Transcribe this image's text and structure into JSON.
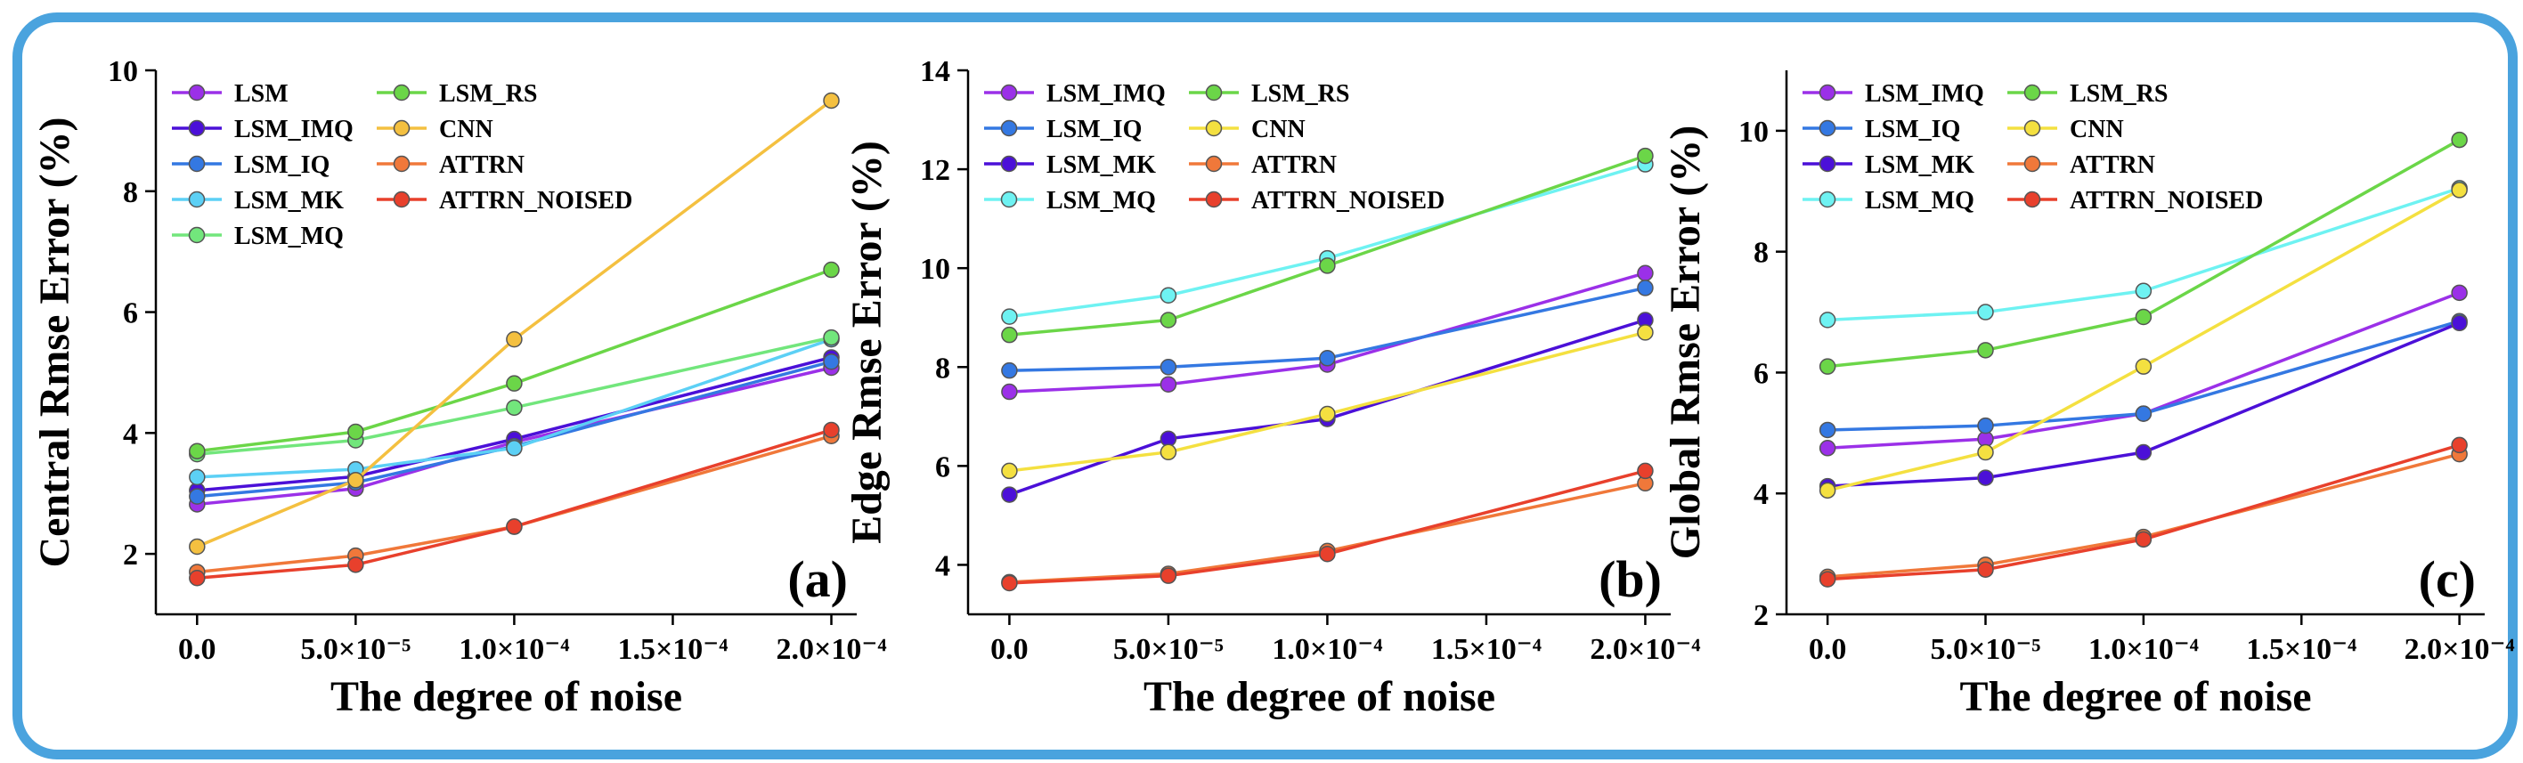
{
  "chart_data": [
    {
      "type": "line",
      "panel_label": "(a)",
      "xlabel": "The degree of noise",
      "ylabel": "Central Rmse Error (%)",
      "x": [
        0,
        5e-05,
        0.0001,
        0.0002
      ],
      "x_range": [
        -1.3e-05,
        0.000208
      ],
      "x_ticks": [
        0,
        5e-05,
        0.0001,
        0.00015,
        0.0002
      ],
      "x_tick_labels": [
        "0.0",
        "5.0×10⁻⁵",
        "1.0×10⁻⁴",
        "1.5×10⁻⁴",
        "2.0×10⁻⁴"
      ],
      "ylim": [
        1,
        10
      ],
      "y_ticks": [
        2,
        4,
        6,
        8,
        10
      ],
      "legend_placement": "top-left",
      "legend_columns": 2,
      "legend_column_split": 5,
      "series": [
        {
          "name": "LSM",
          "color": "#9b30e8",
          "values": [
            2.82,
            3.08,
            3.85,
            5.08
          ]
        },
        {
          "name": "LSM_IMQ",
          "color": "#4b10d8",
          "values": [
            3.05,
            3.28,
            3.9,
            5.25
          ]
        },
        {
          "name": "LSM_IQ",
          "color": "#3478e2",
          "values": [
            2.95,
            3.18,
            3.78,
            5.18
          ]
        },
        {
          "name": "LSM_MK",
          "color": "#5cd0f5",
          "values": [
            3.27,
            3.4,
            3.75,
            5.55
          ]
        },
        {
          "name": "LSM_MQ",
          "color": "#72e67c",
          "values": [
            3.65,
            3.88,
            4.42,
            5.58
          ]
        },
        {
          "name": "LSM_RS",
          "color": "#6bd648",
          "values": [
            3.7,
            4.02,
            4.82,
            6.7
          ]
        },
        {
          "name": "CNN",
          "color": "#f4c040",
          "values": [
            2.12,
            3.22,
            5.55,
            9.5
          ]
        },
        {
          "name": "ATTRN",
          "color": "#f0783a",
          "values": [
            1.7,
            1.97,
            2.45,
            3.95
          ]
        },
        {
          "name": "ATTRN_NOISED",
          "color": "#e8402c",
          "values": [
            1.6,
            1.82,
            2.45,
            4.05
          ]
        }
      ]
    },
    {
      "type": "line",
      "panel_label": "(b)",
      "xlabel": "The degree of noise",
      "ylabel": "Edge Rmse Error (%)",
      "x": [
        0,
        5e-05,
        0.0001,
        0.0002
      ],
      "x_range": [
        -1.3e-05,
        0.000208
      ],
      "x_ticks": [
        0,
        5e-05,
        0.0001,
        0.00015,
        0.0002
      ],
      "x_tick_labels": [
        "0.0",
        "5.0×10⁻⁵",
        "1.0×10⁻⁴",
        "1.5×10⁻⁴",
        "2.0×10⁻⁴"
      ],
      "ylim": [
        3,
        14
      ],
      "y_ticks": [
        4,
        6,
        8,
        10,
        12,
        14
      ],
      "legend_placement": "top-left",
      "legend_columns": 2,
      "legend_column_split": 4,
      "series": [
        {
          "name": "LSM_IMQ",
          "color": "#9b30e8",
          "values": [
            7.5,
            7.65,
            8.05,
            9.9
          ]
        },
        {
          "name": "LSM_IQ",
          "color": "#3478e2",
          "values": [
            7.93,
            8.0,
            8.18,
            9.6
          ]
        },
        {
          "name": "LSM_MK",
          "color": "#4b10d8",
          "values": [
            5.42,
            6.55,
            6.95,
            8.95
          ]
        },
        {
          "name": "LSM_MQ",
          "color": "#6ef2f2",
          "values": [
            9.02,
            9.45,
            10.2,
            12.1
          ]
        },
        {
          "name": "LSM_RS",
          "color": "#6bd648",
          "values": [
            8.65,
            8.95,
            10.05,
            12.27
          ]
        },
        {
          "name": "CNN",
          "color": "#f4e040",
          "values": [
            5.9,
            6.28,
            7.05,
            8.7
          ]
        },
        {
          "name": "ATTRN",
          "color": "#f0783a",
          "values": [
            3.65,
            3.82,
            4.28,
            5.65
          ]
        },
        {
          "name": "ATTRN_NOISED",
          "color": "#e8402c",
          "values": [
            3.63,
            3.78,
            4.22,
            5.9
          ]
        }
      ]
    },
    {
      "type": "line",
      "panel_label": "(c)",
      "xlabel": "The degree of noise",
      "ylabel": "Global Rmse Error (%)",
      "x": [
        0,
        5e-05,
        0.0001,
        0.0002
      ],
      "x_range": [
        -1.3e-05,
        0.000208
      ],
      "x_ticks": [
        0,
        5e-05,
        0.0001,
        0.00015,
        0.0002
      ],
      "x_tick_labels": [
        "0.0",
        "5.0×10⁻⁵",
        "1.0×10⁻⁴",
        "1.5×10⁻⁴",
        "2.0×10⁻⁴"
      ],
      "ylim": [
        2,
        11
      ],
      "y_ticks": [
        2,
        4,
        6,
        8,
        10
      ],
      "legend_placement": "top-left",
      "legend_columns": 2,
      "legend_column_split": 4,
      "series": [
        {
          "name": "LSM_IMQ",
          "color": "#9b30e8",
          "values": [
            4.75,
            4.9,
            5.32,
            7.32
          ]
        },
        {
          "name": "LSM_IQ",
          "color": "#3478e2",
          "values": [
            5.05,
            5.12,
            5.32,
            6.85
          ]
        },
        {
          "name": "LSM_MK",
          "color": "#4b10d8",
          "values": [
            4.12,
            4.26,
            4.68,
            6.82
          ]
        },
        {
          "name": "LSM_MQ",
          "color": "#6ef2f2",
          "values": [
            6.87,
            7.0,
            7.35,
            9.05
          ]
        },
        {
          "name": "LSM_RS",
          "color": "#6bd648",
          "values": [
            6.1,
            6.37,
            6.92,
            9.85
          ]
        },
        {
          "name": "CNN",
          "color": "#f4e040",
          "values": [
            4.05,
            4.68,
            6.1,
            9.02
          ]
        },
        {
          "name": "ATTRN",
          "color": "#f0783a",
          "values": [
            2.62,
            2.82,
            3.28,
            4.65
          ]
        },
        {
          "name": "ATTRN_NOISED",
          "color": "#e8402c",
          "values": [
            2.58,
            2.74,
            3.24,
            4.8
          ]
        }
      ]
    }
  ]
}
